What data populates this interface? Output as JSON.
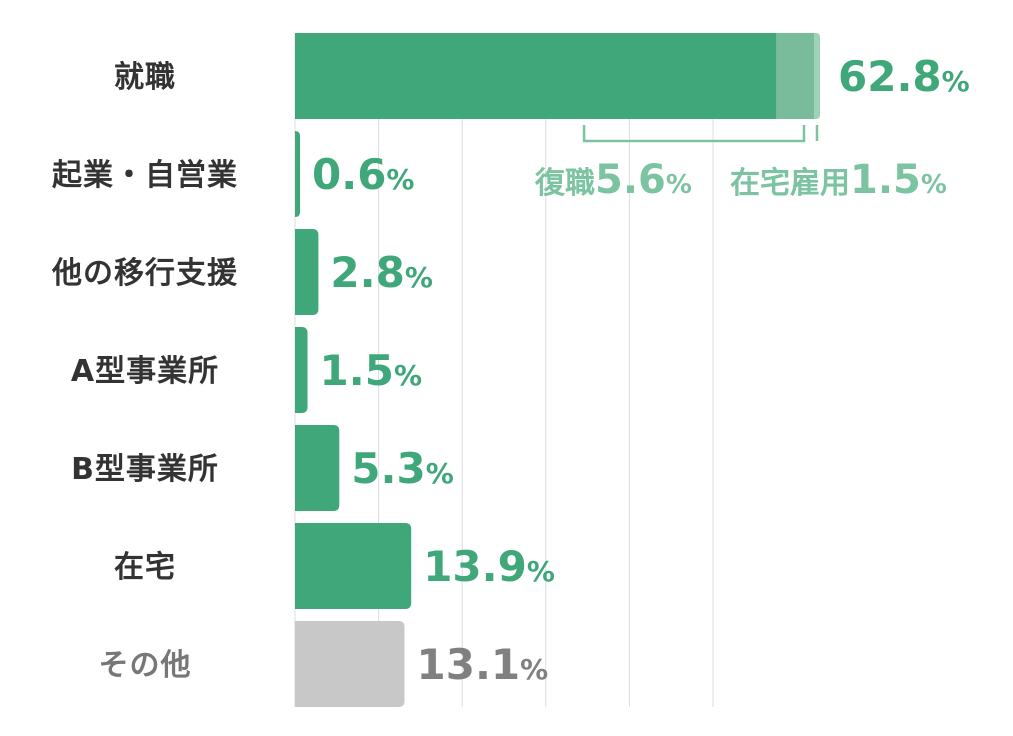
{
  "chart_data": {
    "type": "bar",
    "orientation": "horizontal",
    "categories": [
      "就職",
      "起業・自営業",
      "他の移行支援",
      "A型事業所",
      "B型事業所",
      "在宅",
      "その他"
    ],
    "values": [
      62.8,
      0.6,
      2.8,
      1.5,
      5.3,
      13.9,
      13.1
    ],
    "value_labels": [
      "62.8",
      "0.6",
      "2.8",
      "1.5",
      "5.3",
      "13.9",
      "13.1"
    ],
    "unit": "%",
    "breakdown": {
      "category": "就職",
      "segments": [
        {
          "name": "復職",
          "value": 5.6,
          "label": "5.6"
        },
        {
          "name": "在宅雇用",
          "value": 1.5,
          "label": "1.5"
        }
      ]
    },
    "xlim": [
      0,
      65
    ],
    "grid": true,
    "legend": "none",
    "colors": {
      "bar": "#3fa77a",
      "breakdown_1": "#78bc9b",
      "breakdown_2": "#9fd3b8",
      "other_bar": "#c8c8c8",
      "label": "#3fa77a",
      "other_label": "#808080",
      "bracket": "#7cc4a1"
    }
  }
}
